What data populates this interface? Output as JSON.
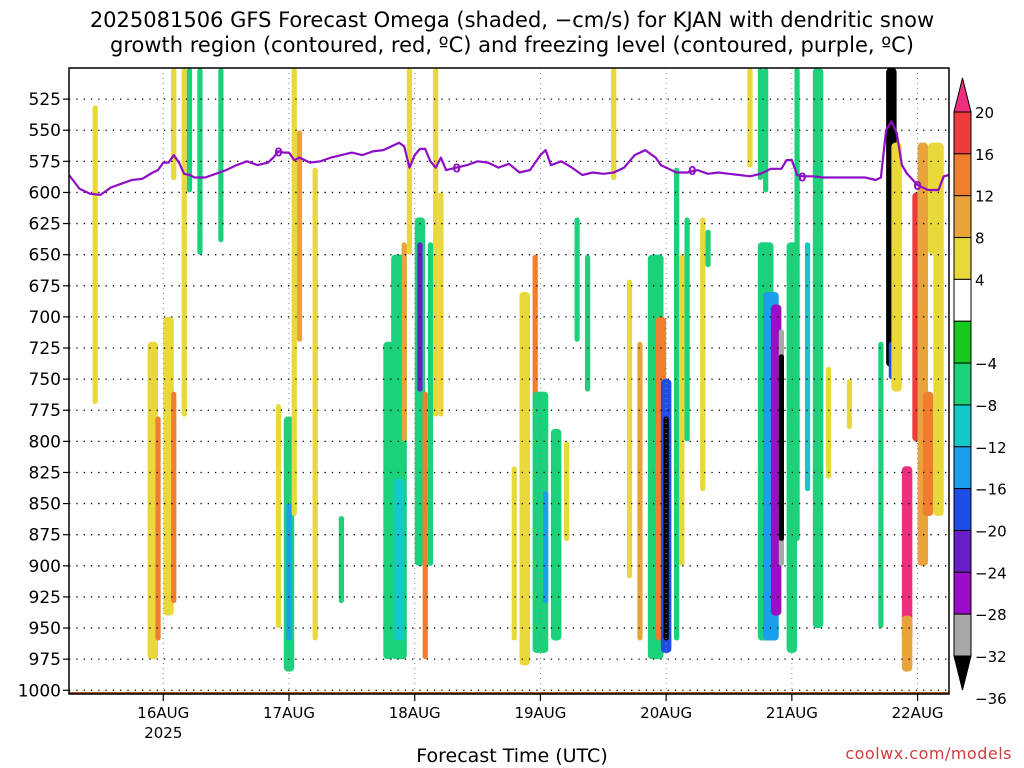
{
  "title_line1": "2025081506 GFS Forecast Omega (shaded, −cm/s) for KJAN with dendritic snow",
  "title_line2": "growth region (contoured, red, ºC) and freezing level (contoured, purple, ºC)",
  "credit": "coolwx.com/models",
  "chart_data": {
    "type": "heatmap",
    "title": "2025081506 GFS Forecast Omega (shaded, −cm/s) for KJAN with dendritic snow growth region (contoured, red, ºC) and freezing level (contoured, purple, ºC)",
    "xlabel": "Forecast Time (UTC)",
    "ylabel": "",
    "y_axis_reversed": true,
    "x_range_hours": [
      6,
      174
    ],
    "y_range": [
      500,
      1003
    ],
    "x_ticks": [
      {
        "hour": 24,
        "label": "16AUG",
        "sub": "2025"
      },
      {
        "hour": 48,
        "label": "17AUG"
      },
      {
        "hour": 72,
        "label": "18AUG"
      },
      {
        "hour": 96,
        "label": "19AUG"
      },
      {
        "hour": 120,
        "label": "20AUG"
      },
      {
        "hour": 144,
        "label": "21AUG"
      },
      {
        "hour": 168,
        "label": "22AUG"
      }
    ],
    "y_ticks": [
      525,
      550,
      575,
      600,
      625,
      650,
      675,
      700,
      725,
      750,
      775,
      800,
      825,
      850,
      875,
      900,
      925,
      950,
      975,
      1000
    ],
    "grid": true,
    "colorbar": {
      "labels": [
        "20",
        "16",
        "12",
        "8",
        "4",
        "−4",
        "−8",
        "−12",
        "−16",
        "−20",
        "−24",
        "−28",
        "−32",
        "−36"
      ],
      "colors": [
        "#ee2f80",
        "#ef3b3b",
        "#ef7f2f",
        "#e8a43a",
        "#e8d83a",
        "#ffffff",
        "#19c81f",
        "#1bd27a",
        "#12c8c8",
        "#1aa0ea",
        "#1e4ee8",
        "#6a1ec8",
        "#9b0ec8",
        "#a8a8a8",
        "#000000"
      ]
    },
    "omega_cells": [
      {
        "h": 11,
        "p0": 530,
        "p1": 770,
        "w": 1,
        "v": 4
      },
      {
        "h": 22,
        "p0": 720,
        "p1": 975,
        "w": 2,
        "v": 4
      },
      {
        "h": 23,
        "p0": 780,
        "p1": 960,
        "w": 1,
        "v": 12
      },
      {
        "h": 25,
        "p0": 700,
        "p1": 940,
        "w": 2,
        "v": 4
      },
      {
        "h": 26,
        "p0": 760,
        "p1": 930,
        "w": 1,
        "v": 12
      },
      {
        "h": 26,
        "p0": 500,
        "p1": 590,
        "w": 1,
        "v": 4
      },
      {
        "h": 28,
        "p0": 500,
        "p1": 780,
        "w": 1,
        "v": 4
      },
      {
        "h": 29,
        "p0": 500,
        "p1": 600,
        "w": 1,
        "v": -8
      },
      {
        "h": 31,
        "p0": 500,
        "p1": 650,
        "w": 1,
        "v": -8
      },
      {
        "h": 35,
        "p0": 500,
        "p1": 640,
        "w": 1,
        "v": -8
      },
      {
        "h": 46,
        "p0": 770,
        "p1": 950,
        "w": 1,
        "v": 4
      },
      {
        "h": 48,
        "p0": 780,
        "p1": 985,
        "w": 2,
        "v": -8
      },
      {
        "h": 48,
        "p0": 850,
        "p1": 960,
        "w": 1,
        "v": -16
      },
      {
        "h": 49,
        "p0": 500,
        "p1": 860,
        "w": 1,
        "v": 4
      },
      {
        "h": 50,
        "p0": 550,
        "p1": 720,
        "w": 1,
        "v": 8
      },
      {
        "h": 53,
        "p0": 580,
        "p1": 960,
        "w": 1,
        "v": 4
      },
      {
        "h": 58,
        "p0": 860,
        "p1": 930,
        "w": 1,
        "v": -8
      },
      {
        "h": 67,
        "p0": 720,
        "p1": 975,
        "w": 2,
        "v": -8
      },
      {
        "h": 69,
        "p0": 650,
        "p1": 975,
        "w": 3,
        "v": -8
      },
      {
        "h": 69,
        "p0": 830,
        "p1": 960,
        "w": 2,
        "v": -12
      },
      {
        "h": 70,
        "p0": 640,
        "p1": 800,
        "w": 1,
        "v": 8
      },
      {
        "h": 71,
        "p0": 500,
        "p1": 650,
        "w": 1,
        "v": 4
      },
      {
        "h": 73,
        "p0": 620,
        "p1": 900,
        "w": 2,
        "v": -8
      },
      {
        "h": 73,
        "p0": 640,
        "p1": 760,
        "w": 1,
        "v": -24
      },
      {
        "h": 74,
        "p0": 760,
        "p1": 975,
        "w": 1,
        "v": 12
      },
      {
        "h": 75,
        "p0": 640,
        "p1": 900,
        "w": 1,
        "v": -8
      },
      {
        "h": 76,
        "p0": 500,
        "p1": 780,
        "w": 1,
        "v": 4
      },
      {
        "h": 77,
        "p0": 600,
        "p1": 780,
        "w": 1,
        "v": 4
      },
      {
        "h": 91,
        "p0": 820,
        "p1": 960,
        "w": 1,
        "v": 4
      },
      {
        "h": 93,
        "p0": 680,
        "p1": 980,
        "w": 2,
        "v": 4
      },
      {
        "h": 95,
        "p0": 650,
        "p1": 790,
        "w": 1,
        "v": 12
      },
      {
        "h": 96,
        "p0": 760,
        "p1": 970,
        "w": 3,
        "v": -8
      },
      {
        "h": 97,
        "p0": 840,
        "p1": 930,
        "w": 1,
        "v": -16
      },
      {
        "h": 99,
        "p0": 790,
        "p1": 960,
        "w": 2,
        "v": -8
      },
      {
        "h": 101,
        "p0": 800,
        "p1": 880,
        "w": 1,
        "v": 4
      },
      {
        "h": 103,
        "p0": 620,
        "p1": 720,
        "w": 1,
        "v": -8
      },
      {
        "h": 105,
        "p0": 650,
        "p1": 760,
        "w": 1,
        "v": -8
      },
      {
        "h": 110,
        "p0": 500,
        "p1": 590,
        "w": 1,
        "v": 4
      },
      {
        "h": 113,
        "p0": 670,
        "p1": 910,
        "w": 1,
        "v": 4
      },
      {
        "h": 115,
        "p0": 720,
        "p1": 960,
        "w": 1,
        "v": 8
      },
      {
        "h": 118,
        "p0": 650,
        "p1": 975,
        "w": 3,
        "v": -8
      },
      {
        "h": 119,
        "p0": 700,
        "p1": 960,
        "w": 2,
        "v": 12
      },
      {
        "h": 120,
        "p0": 750,
        "p1": 970,
        "w": 2,
        "v": -20
      },
      {
        "h": 120,
        "p0": 780,
        "p1": 960,
        "w": 1,
        "v": -36
      },
      {
        "h": 122,
        "p0": 580,
        "p1": 960,
        "w": 1,
        "v": -8
      },
      {
        "h": 123,
        "p0": 650,
        "p1": 900,
        "w": 1,
        "v": 4
      },
      {
        "h": 124,
        "p0": 620,
        "p1": 800,
        "w": 1,
        "v": -8
      },
      {
        "h": 127,
        "p0": 620,
        "p1": 840,
        "w": 1,
        "v": 4
      },
      {
        "h": 128,
        "p0": 630,
        "p1": 660,
        "w": 1,
        "v": -8
      },
      {
        "h": 136,
        "p0": 500,
        "p1": 580,
        "w": 1,
        "v": 4
      },
      {
        "h": 138,
        "p0": 500,
        "p1": 590,
        "w": 1,
        "v": -8
      },
      {
        "h": 139,
        "p0": 500,
        "p1": 600,
        "w": 1,
        "v": -8
      },
      {
        "h": 139,
        "p0": 640,
        "p1": 960,
        "w": 3,
        "v": -8
      },
      {
        "h": 140,
        "p0": 680,
        "p1": 960,
        "w": 3,
        "v": -16
      },
      {
        "h": 141,
        "p0": 690,
        "p1": 940,
        "w": 2,
        "v": -28
      },
      {
        "h": 142,
        "p0": 710,
        "p1": 900,
        "w": 1,
        "v": -32
      },
      {
        "h": 142,
        "p0": 730,
        "p1": 880,
        "w": 1,
        "v": -36
      },
      {
        "h": 144,
        "p0": 640,
        "p1": 970,
        "w": 2,
        "v": -8
      },
      {
        "h": 145,
        "p0": 500,
        "p1": 880,
        "w": 1,
        "v": -8
      },
      {
        "h": 147,
        "p0": 640,
        "p1": 840,
        "w": 1,
        "v": -12
      },
      {
        "h": 149,
        "p0": 500,
        "p1": 950,
        "w": 2,
        "v": -8
      },
      {
        "h": 151,
        "p0": 740,
        "p1": 830,
        "w": 1,
        "v": 4
      },
      {
        "h": 155,
        "p0": 750,
        "p1": 790,
        "w": 1,
        "v": 4
      },
      {
        "h": 163,
        "p0": 500,
        "p1": 740,
        "w": 2,
        "v": -36
      },
      {
        "h": 163,
        "p0": 720,
        "p1": 750,
        "w": 1,
        "v": -20
      },
      {
        "h": 161,
        "p0": 720,
        "p1": 950,
        "w": 1,
        "v": -8
      },
      {
        "h": 164,
        "p0": 560,
        "p1": 760,
        "w": 2,
        "v": 4
      },
      {
        "h": 166,
        "p0": 820,
        "p1": 960,
        "w": 2,
        "v": 20
      },
      {
        "h": 166,
        "p0": 940,
        "p1": 985,
        "w": 2,
        "v": 8
      },
      {
        "h": 168,
        "p0": 600,
        "p1": 800,
        "w": 2,
        "v": 16
      },
      {
        "h": 169,
        "p0": 560,
        "p1": 900,
        "w": 2,
        "v": 8
      },
      {
        "h": 170,
        "p0": 760,
        "p1": 860,
        "w": 2,
        "v": 12
      },
      {
        "h": 171,
        "p0": 560,
        "p1": 650,
        "w": 2,
        "v": 4
      },
      {
        "h": 172,
        "p0": 560,
        "p1": 860,
        "w": 2,
        "v": 4
      }
    ],
    "freezing_level": {
      "label": "0",
      "hours": [
        6,
        8,
        10,
        12,
        14,
        16,
        18,
        20,
        22,
        23,
        24,
        25,
        26,
        27,
        28,
        29,
        30,
        32,
        34,
        36,
        38,
        40,
        42,
        44,
        45,
        46,
        47,
        48,
        49,
        50,
        52,
        54,
        56,
        58,
        60,
        62,
        64,
        66,
        68,
        69,
        70,
        71,
        72,
        73,
        74,
        75,
        76,
        77,
        78,
        80,
        82,
        84,
        86,
        88,
        90,
        92,
        94,
        96,
        97,
        98,
        100,
        102,
        104,
        106,
        108,
        110,
        112,
        114,
        116,
        118,
        119,
        120,
        121,
        122,
        124,
        126,
        128,
        130,
        132,
        134,
        136,
        138,
        140,
        142,
        143,
        144,
        145,
        146,
        148,
        150,
        152,
        154,
        156,
        158,
        160,
        161,
        162,
        163,
        164,
        165,
        166,
        168,
        170,
        172,
        173,
        174
      ],
      "pressure": [
        586,
        597,
        601,
        602,
        596,
        593,
        590,
        589,
        584,
        582,
        576,
        576,
        570,
        576,
        585,
        586,
        588,
        588,
        585,
        582,
        578,
        575,
        578,
        576,
        572,
        567,
        568,
        568,
        574,
        572,
        576,
        575,
        572,
        570,
        568,
        570,
        567,
        566,
        562,
        560,
        563,
        580,
        570,
        565,
        565,
        575,
        580,
        572,
        582,
        580,
        578,
        575,
        576,
        580,
        577,
        584,
        582,
        570,
        566,
        578,
        575,
        580,
        586,
        584,
        585,
        584,
        580,
        570,
        566,
        572,
        578,
        580,
        582,
        584,
        584,
        582,
        585,
        584,
        585,
        586,
        587,
        585,
        581,
        581,
        574,
        574,
        586,
        587,
        587,
        588,
        588,
        588,
        588,
        588,
        590,
        588,
        550,
        543,
        552,
        578,
        585,
        594,
        598,
        598,
        587,
        586
      ]
    },
    "surface_pressure": 1003
  }
}
